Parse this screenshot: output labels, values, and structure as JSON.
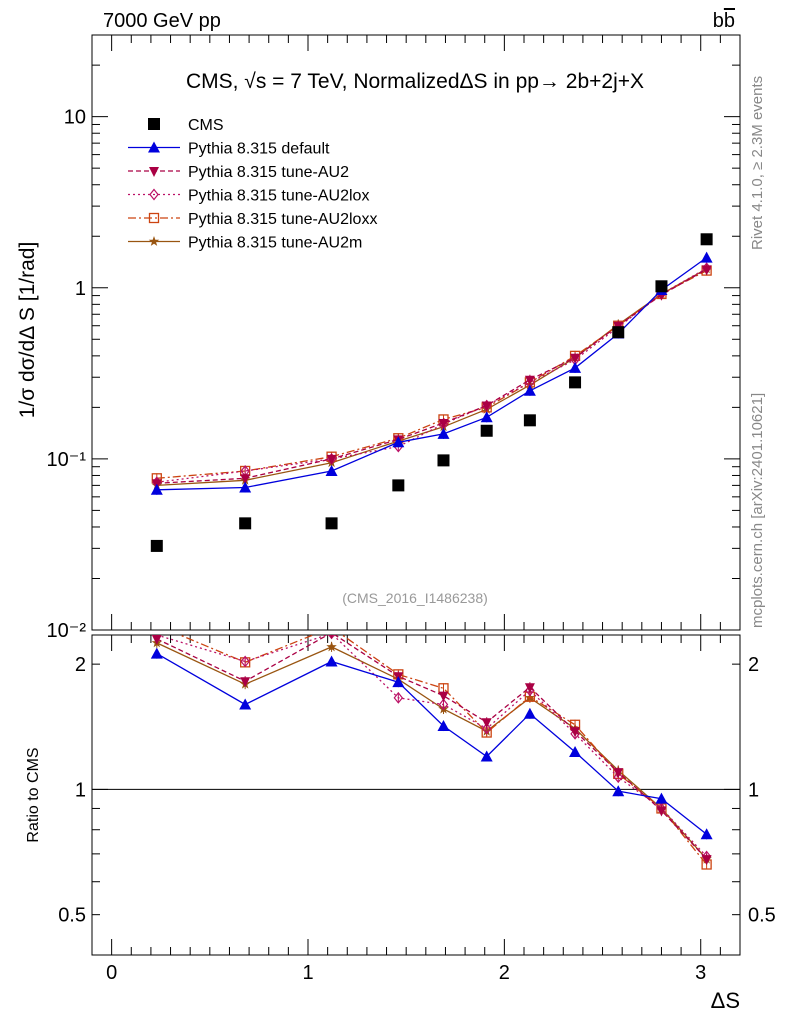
{
  "header": {
    "left": "7000 GeV pp",
    "right_main": "b",
    "right_bar": "b"
  },
  "side": {
    "rivet": "Rivet 4.1.0, ≥ 2.3M events",
    "mcplots": "mcplots.cern.ch [arXiv:2401.10621]"
  },
  "colors": {
    "data": "#000000",
    "default": "#0000dd",
    "au2": "#aa0044",
    "au2lox": "#bb1166",
    "au2loxx": "#cc4411",
    "au2m": "#995511"
  },
  "chart_data": [
    {
      "type": "scatter",
      "panel": "main",
      "title": "CMS, √s = 7 TeV, NormalizedΔS in pp→  2b+2j+X",
      "ylabel": "1/σ dσ/dΔ S [1/rad]",
      "yscale": "log",
      "ylim": [
        0.01,
        30
      ],
      "xlim": [
        -0.1,
        3.2
      ],
      "yticks": [
        {
          "v": 0.01,
          "label": "10⁻²"
        },
        {
          "v": 0.1,
          "label": "10⁻¹"
        },
        {
          "v": 1,
          "label": "1"
        },
        {
          "v": 10,
          "label": "10"
        }
      ],
      "watermark": "(CMS_2016_I1486238)",
      "x": [
        0.23,
        0.68,
        1.12,
        1.46,
        1.69,
        1.91,
        2.13,
        2.36,
        2.58,
        2.8,
        3.03
      ],
      "series": [
        {
          "name": "CMS",
          "key": "data",
          "marker": "square",
          "line": "none",
          "values": [
            0.031,
            0.042,
            0.042,
            0.07,
            0.098,
            0.146,
            0.168,
            0.28,
            0.55,
            1.02,
            1.92
          ]
        },
        {
          "name": "Pythia 8.315 default",
          "key": "default",
          "marker": "triangle-up",
          "line": "solid",
          "values": [
            0.066,
            0.068,
            0.085,
            0.125,
            0.14,
            0.175,
            0.25,
            0.34,
            0.54,
            0.97,
            1.5
          ]
        },
        {
          "name": "Pythia 8.315 tune-AU2",
          "key": "au2",
          "marker": "triangle-down",
          "line": "dashed",
          "values": [
            0.072,
            0.077,
            0.1,
            0.13,
            0.162,
            0.205,
            0.29,
            0.39,
            0.6,
            0.91,
            1.28
          ]
        },
        {
          "name": "Pythia 8.315 tune-AU2lox",
          "key": "au2lox",
          "marker": "diamond-open",
          "line": "dotted",
          "values": [
            0.073,
            0.085,
            0.1,
            0.118,
            0.16,
            0.205,
            0.28,
            0.38,
            0.59,
            0.92,
            1.3
          ]
        },
        {
          "name": "Pythia 8.315 tune-AU2loxx",
          "key": "au2loxx",
          "marker": "square-open",
          "line": "dashdot",
          "values": [
            0.077,
            0.085,
            0.103,
            0.132,
            0.17,
            0.2,
            0.28,
            0.4,
            0.6,
            0.92,
            1.26
          ]
        },
        {
          "name": "Pythia 8.315 tune-AU2m",
          "key": "au2m",
          "marker": "star",
          "line": "solid",
          "values": [
            0.07,
            0.075,
            0.095,
            0.127,
            0.154,
            0.195,
            0.27,
            0.39,
            0.61,
            0.92,
            1.29
          ]
        }
      ]
    },
    {
      "type": "line",
      "panel": "ratio",
      "ylabel": "Ratio to CMS",
      "xlabel": "ΔS",
      "yscale": "log",
      "ylim": [
        0.4,
        2.35
      ],
      "yticks": [
        {
          "v": 0.5,
          "label": "0.5"
        },
        {
          "v": 1,
          "label": "1"
        },
        {
          "v": 2,
          "label": "2"
        }
      ],
      "xticks": [
        {
          "v": 0,
          "label": "0"
        },
        {
          "v": 1,
          "label": "1"
        },
        {
          "v": 2,
          "label": "2"
        },
        {
          "v": 3,
          "label": "3"
        }
      ],
      "reference": 1,
      "x": [
        0.23,
        0.68,
        1.12,
        1.46,
        1.69,
        1.91,
        2.13,
        2.36,
        2.58,
        2.8,
        3.03
      ],
      "series": [
        {
          "name": "Pythia 8.315 default",
          "key": "default",
          "marker": "triangle-up",
          "line": "solid",
          "values": [
            2.12,
            1.6,
            2.03,
            1.81,
            1.42,
            1.2,
            1.52,
            1.23,
            0.99,
            0.95,
            0.78
          ]
        },
        {
          "name": "Pythia 8.315 tune-AU2",
          "key": "au2",
          "marker": "triangle-down",
          "line": "dashed",
          "values": [
            2.3,
            1.82,
            2.38,
            1.87,
            1.68,
            1.45,
            1.76,
            1.38,
            1.1,
            0.89,
            0.68
          ]
        },
        {
          "name": "Pythia 8.315 tune-AU2lox",
          "key": "au2lox",
          "marker": "diamond-open",
          "line": "dotted",
          "values": [
            2.35,
            2.03,
            2.37,
            1.66,
            1.6,
            1.4,
            1.73,
            1.36,
            1.07,
            0.9,
            0.69
          ]
        },
        {
          "name": "Pythia 8.315 tune-AU2loxx",
          "key": "au2loxx",
          "marker": "square-open",
          "line": "dashdot",
          "values": [
            2.48,
            2.02,
            2.45,
            1.89,
            1.75,
            1.37,
            1.67,
            1.43,
            1.09,
            0.9,
            0.66
          ]
        },
        {
          "name": "Pythia 8.315 tune-AU2m",
          "key": "au2m",
          "marker": "star",
          "line": "solid",
          "values": [
            2.25,
            1.79,
            2.2,
            1.84,
            1.56,
            1.38,
            1.66,
            1.4,
            1.11,
            0.9,
            0.68
          ]
        }
      ]
    }
  ]
}
